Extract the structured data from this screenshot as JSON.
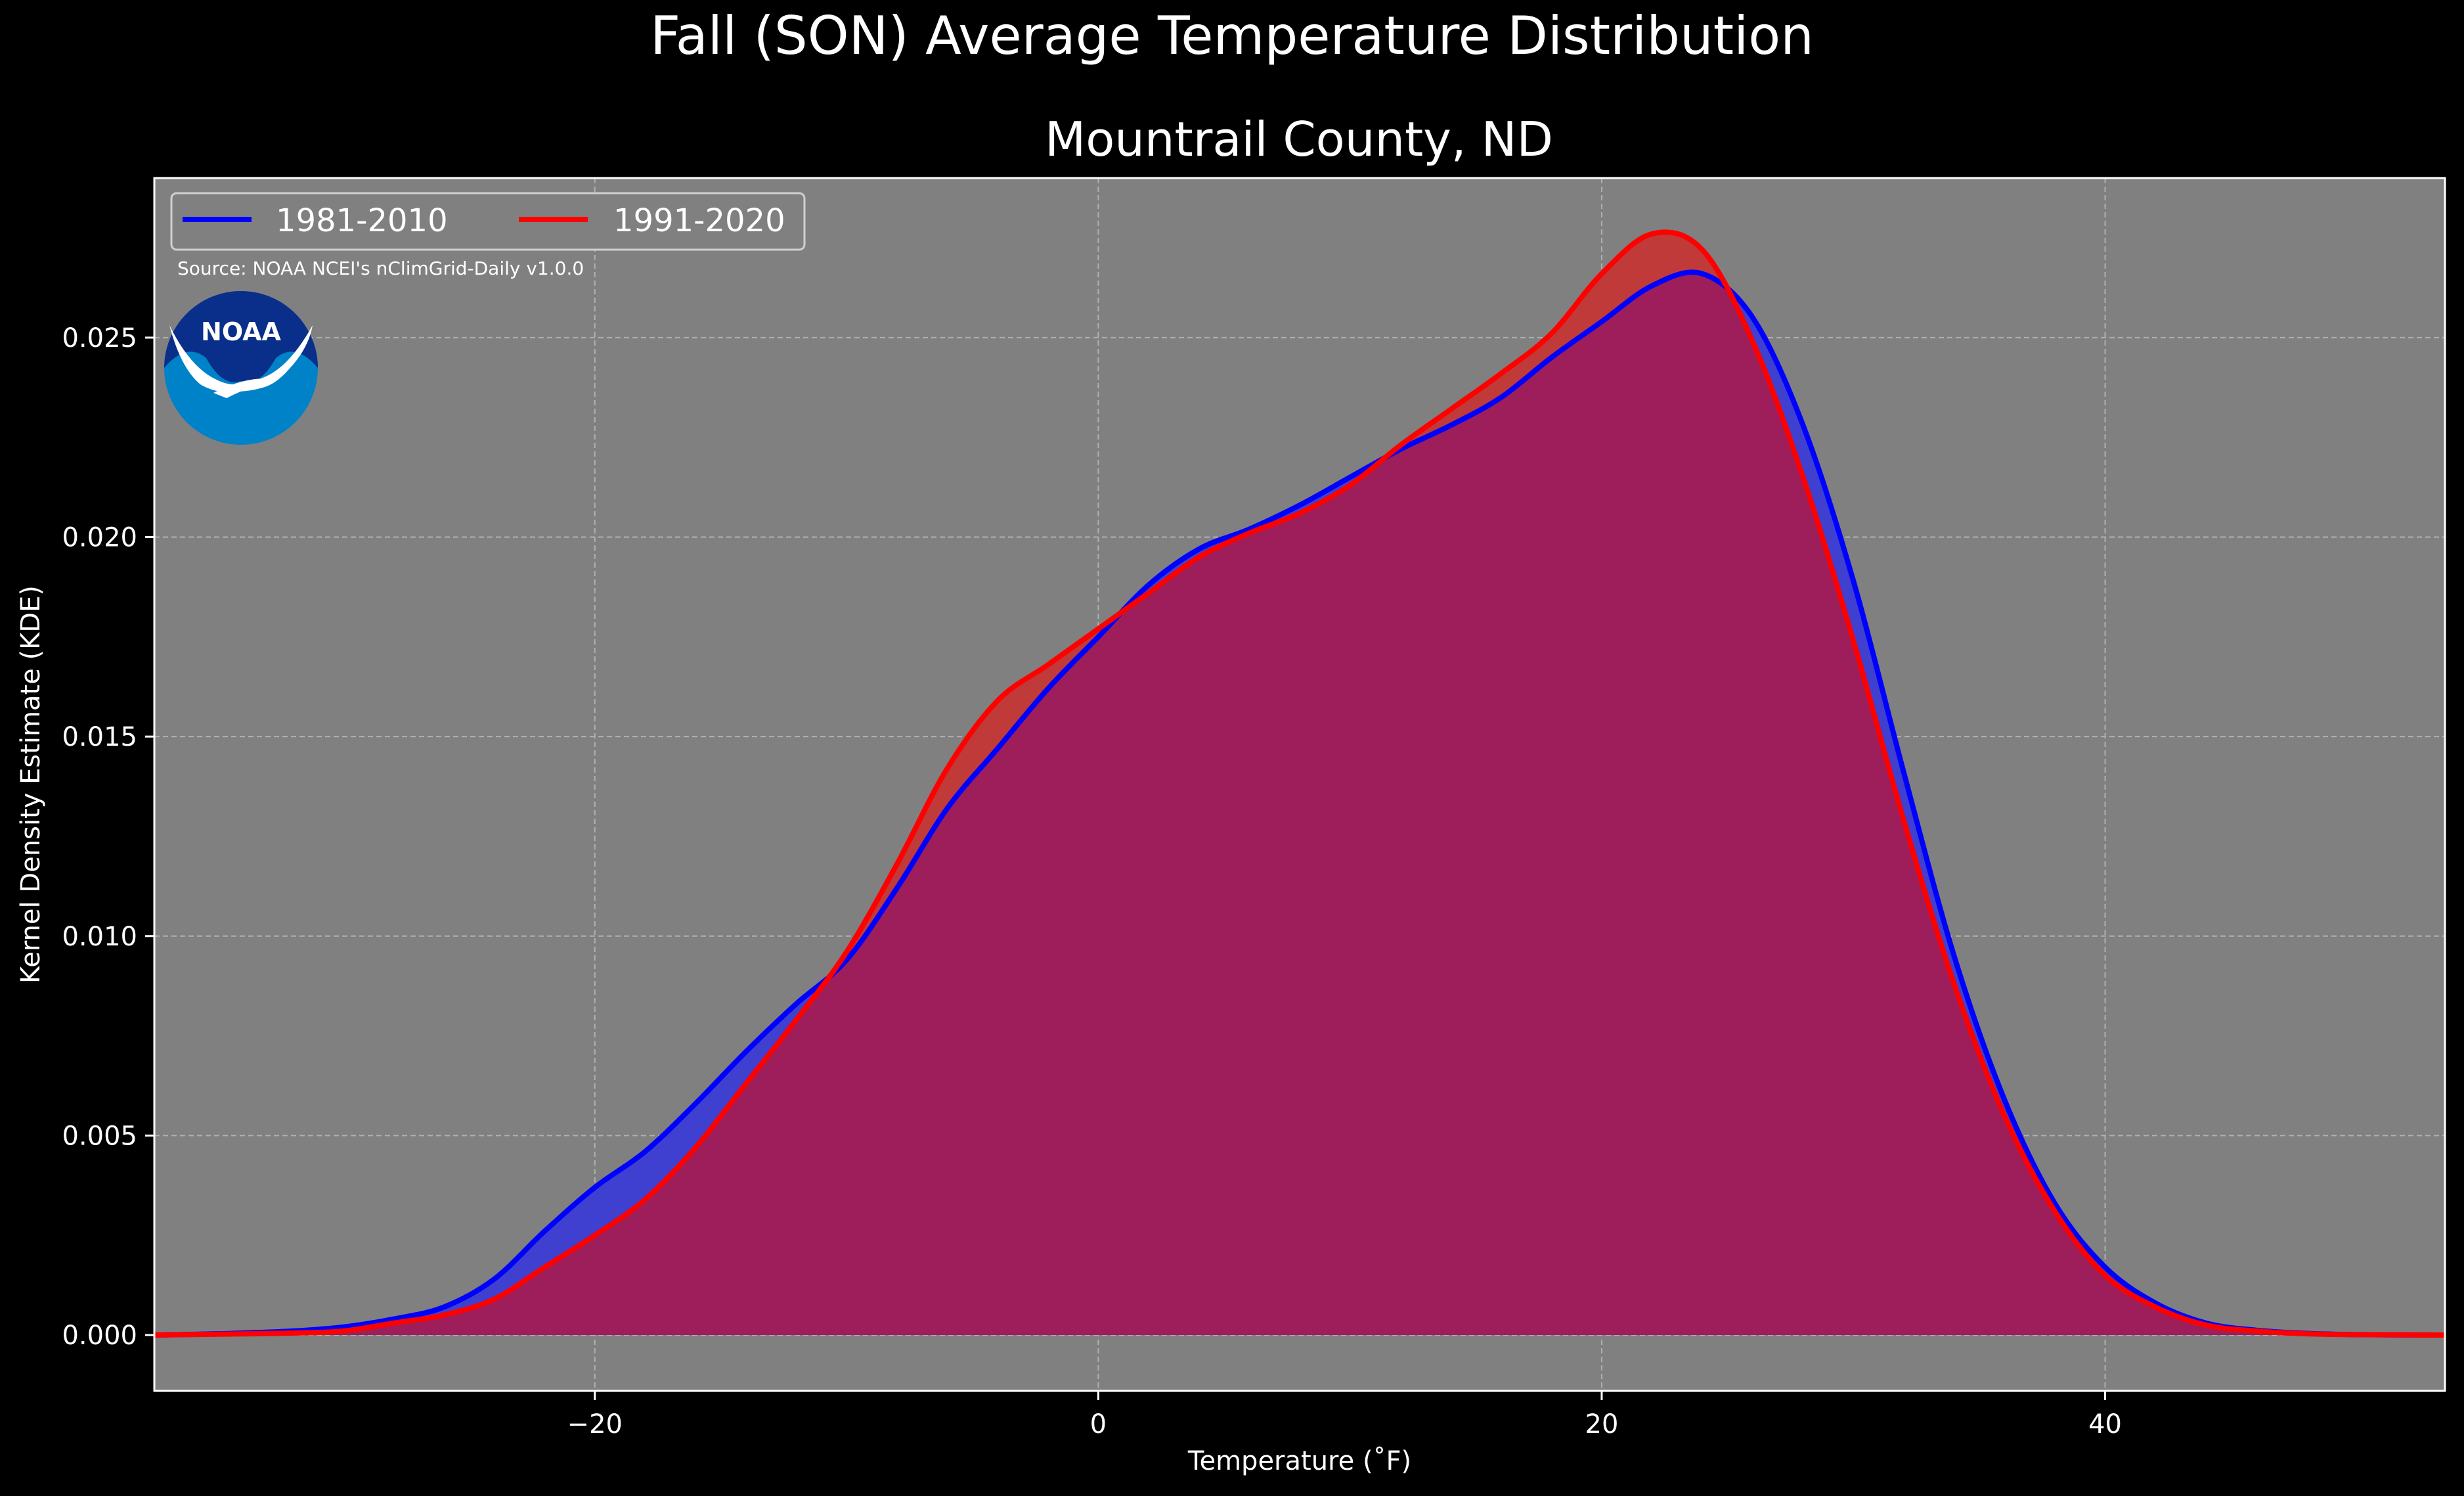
{
  "chart_data": {
    "type": "area",
    "title": "Fall (SON) Average Temperature Distribution",
    "subtitle": "Mountrail County, ND",
    "xlabel": "Temperature (˚F)",
    "ylabel": "Kernel Density Estimate (KDE)",
    "xlim": [
      -37.5,
      53.5
    ],
    "ylim": [
      -0.0014,
      0.029
    ],
    "xticks": [
      -20,
      0,
      20,
      40
    ],
    "xtick_labels": [
      "−20",
      "0",
      "20",
      "40"
    ],
    "yticks": [
      0.0,
      0.005,
      0.01,
      0.015,
      0.02,
      0.025
    ],
    "ytick_labels": [
      "0.000",
      "0.005",
      "0.010",
      "0.015",
      "0.020",
      "0.025"
    ],
    "grid": true,
    "legend_position": "top-left",
    "source_note": "Source: NOAA NCEI's nClimGrid-Daily v1.0.0",
    "logo_text": "NOAA",
    "x": [
      -37.5,
      -35,
      -32,
      -30,
      -28,
      -26,
      -24,
      -22,
      -20,
      -18,
      -16,
      -14,
      -12,
      -10,
      -8,
      -6,
      -4,
      -2,
      0,
      2,
      4,
      6,
      8,
      10,
      12,
      14,
      16,
      18,
      20,
      22,
      24,
      26,
      28,
      30,
      32,
      34,
      36,
      38,
      40,
      42,
      44,
      46,
      48,
      50,
      53.5
    ],
    "series": [
      {
        "name": "1981-2010",
        "color": "#0000ff",
        "fill": "#4040d0",
        "values": [
          0.0,
          3e-05,
          0.0001,
          0.0002,
          0.0004,
          0.0007,
          0.0014,
          0.0026,
          0.0037,
          0.0046,
          0.0058,
          0.0071,
          0.0083,
          0.0094,
          0.0112,
          0.0132,
          0.0147,
          0.0162,
          0.0175,
          0.0188,
          0.0197,
          0.0202,
          0.0208,
          0.0215,
          0.0222,
          0.0228,
          0.0235,
          0.0245,
          0.0254,
          0.0263,
          0.0266,
          0.0255,
          0.0228,
          0.0189,
          0.0141,
          0.0095,
          0.0059,
          0.0033,
          0.0017,
          0.0008,
          0.0003,
          0.00012,
          4e-05,
          1e-05,
          0.0
        ]
      },
      {
        "name": "1991-2020",
        "color": "#ff0000",
        "fill": "#c03a3a",
        "values": [
          0.0,
          2e-05,
          5e-05,
          0.0001,
          0.0003,
          0.0005,
          0.0009,
          0.0017,
          0.0025,
          0.0034,
          0.0047,
          0.0063,
          0.0079,
          0.0096,
          0.0118,
          0.0142,
          0.0159,
          0.0168,
          0.0177,
          0.0186,
          0.0195,
          0.0201,
          0.0206,
          0.0213,
          0.0223,
          0.0232,
          0.0241,
          0.0251,
          0.0266,
          0.0276,
          0.0272,
          0.0249,
          0.0215,
          0.0174,
          0.0129,
          0.0088,
          0.0055,
          0.0031,
          0.0015,
          0.0007,
          0.00025,
          0.0001,
          3e-05,
          1e-05,
          0.0
        ]
      }
    ],
    "overlap_fill": "#9e1e5c"
  }
}
